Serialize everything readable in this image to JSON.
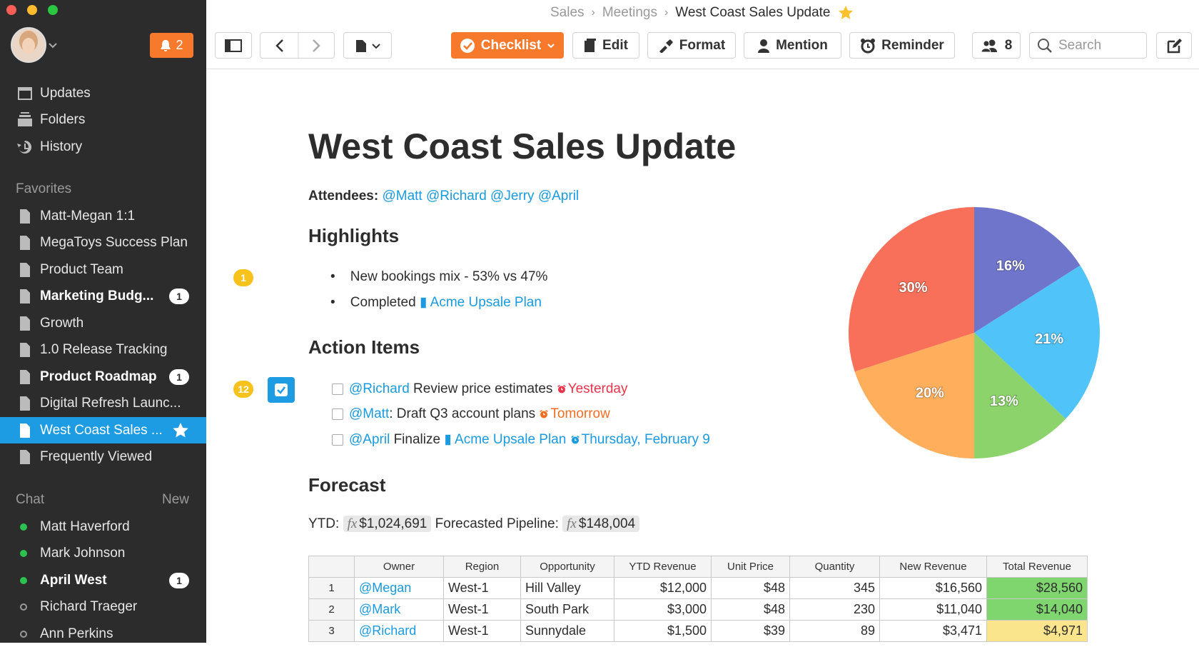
{
  "sidebar": {
    "notification_count": "2",
    "nav": [
      "Updates",
      "Folders",
      "History"
    ],
    "favorites_title": "Favorites",
    "favorites": [
      {
        "label": "Matt-Megan 1:1"
      },
      {
        "label": "MegaToys Success Plan"
      },
      {
        "label": "Product Team"
      },
      {
        "label": "Marketing Budg...",
        "badge": "1"
      },
      {
        "label": "Growth"
      },
      {
        "label": "1.0 Release Tracking"
      },
      {
        "label": "Product Roadmap",
        "badge": "1"
      },
      {
        "label": "Digital Refresh Launc..."
      },
      {
        "label": "West Coast Sales ...",
        "selected": true
      },
      {
        "label": "Frequently Viewed"
      }
    ],
    "chat_title": "Chat",
    "chat_new": "New",
    "chat": [
      {
        "label": "Matt Haverford",
        "online": true
      },
      {
        "label": "Mark Johnson",
        "online": true
      },
      {
        "label": "April West",
        "online": true,
        "badge": "1"
      },
      {
        "label": "Richard Traeger",
        "online": false
      },
      {
        "label": "Ann Perkins",
        "online": false
      }
    ]
  },
  "toolbar": {
    "breadcrumb": [
      "Sales",
      "Meetings",
      "West Coast Sales Update"
    ],
    "checklist": "Checklist",
    "edit": "Edit",
    "format": "Format",
    "mention": "Mention",
    "reminder": "Reminder",
    "members": "8",
    "search": "Search"
  },
  "document": {
    "title": "West Coast Sales Update",
    "attendees_label": "Attendees:",
    "attendees": [
      "@Matt",
      "@Richard",
      "@Jerry",
      "@April"
    ],
    "highlights_heading": "Highlights",
    "highlights_comments": "1",
    "highlights": [
      {
        "text": "New bookings mix - 53% vs 47%"
      },
      {
        "text": "Completed",
        "link": "Acme Upsale Plan"
      }
    ],
    "action_heading": "Action Items",
    "action_comments": "12",
    "actions": [
      {
        "mention": "@Richard",
        "text": "Review price estimates",
        "due": "Yesterday",
        "due_color": "#e8334a"
      },
      {
        "mention": "@Matt",
        "text": ": Draft Q3 account plans",
        "due": "Tomorrow",
        "due_color": "#f26d21"
      },
      {
        "mention": "@April",
        "text": "Finalize",
        "link": "Acme Upsale Plan",
        "due": "Thursday, February 9",
        "due_color": "#1a9ae0"
      }
    ],
    "forecast_heading": "Forecast",
    "formula_icon": "fx",
    "ytd_label": "YTD:",
    "ytd": "$1,024,691",
    "pipeline_label": "Forecasted Pipeline:",
    "pipeline": "$148,004",
    "chart": {
      "type": "pie",
      "values": [
        16,
        21,
        13,
        20,
        30
      ],
      "value_labels": [
        "16%",
        "21%",
        "13%",
        "20%",
        "30%"
      ],
      "colors": [
        "#6f75cb",
        "#50c3f8",
        "#8bd36a",
        "#ffae5b",
        "#f8705a"
      ]
    },
    "table": {
      "columns": [
        "Owner",
        "Region",
        "Opportunity",
        "YTD Revenue",
        "Unit Price",
        "Quantity",
        "New Revenue",
        "Total Revenue"
      ],
      "rows": [
        [
          "1",
          "@Megan",
          "West-1",
          "Hill Valley",
          "$12,000",
          "$48",
          "345",
          "$16,560",
          "$28,560"
        ],
        [
          "2",
          "@Mark",
          "West-1",
          "South Park",
          "$3,000",
          "$48",
          "230",
          "$11,040",
          "$14,040"
        ],
        [
          "3",
          "@Richard",
          "West-1",
          "Sunnydale",
          "$1,500",
          "$39",
          "89",
          "$3,471",
          "$4,971"
        ]
      ],
      "total_colors": [
        "#7fd56e",
        "#7fd56e",
        "#fbe58c"
      ]
    }
  }
}
